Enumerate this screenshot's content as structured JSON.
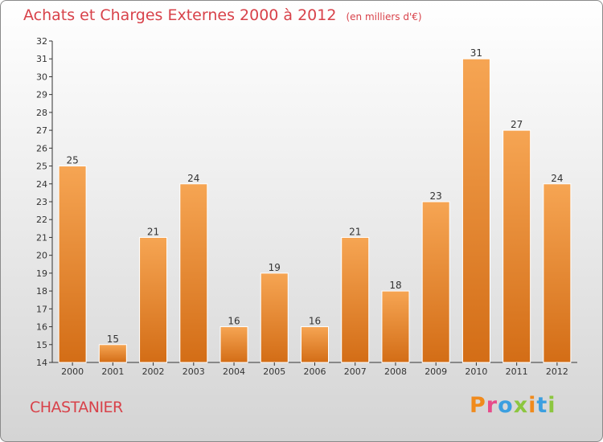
{
  "header": {
    "title": "Achats et Charges Externes 2000 à 2012",
    "unit": "(en milliers d'€)"
  },
  "footer": {
    "commune": "CHASTANIER",
    "brand": "Proxiti",
    "brand_colors": [
      "#f08a1c",
      "#e74c8b",
      "#3b9fe0",
      "#8cc63f",
      "#f08a1c",
      "#3b9fe0",
      "#8cc63f"
    ]
  },
  "colors": {
    "bar_top": "#f6a553",
    "bar_bottom": "#d36d16",
    "title": "#d8424a"
  },
  "chart_data": {
    "type": "bar",
    "title": "Achats et Charges Externes 2000 à 2012",
    "subtitle": "(en milliers d'€)",
    "categories": [
      "2000",
      "2001",
      "2002",
      "2003",
      "2004",
      "2005",
      "2006",
      "2007",
      "2008",
      "2009",
      "2010",
      "2011",
      "2012"
    ],
    "values": [
      25,
      15,
      21,
      24,
      16,
      19,
      16,
      21,
      18,
      23,
      31,
      27,
      24
    ],
    "ylim": [
      14,
      32
    ],
    "yticks": [
      14,
      15,
      16,
      17,
      18,
      19,
      20,
      21,
      22,
      23,
      24,
      25,
      26,
      27,
      28,
      29,
      30,
      31,
      32
    ],
    "grid": false,
    "xlabel": "",
    "ylabel": ""
  }
}
